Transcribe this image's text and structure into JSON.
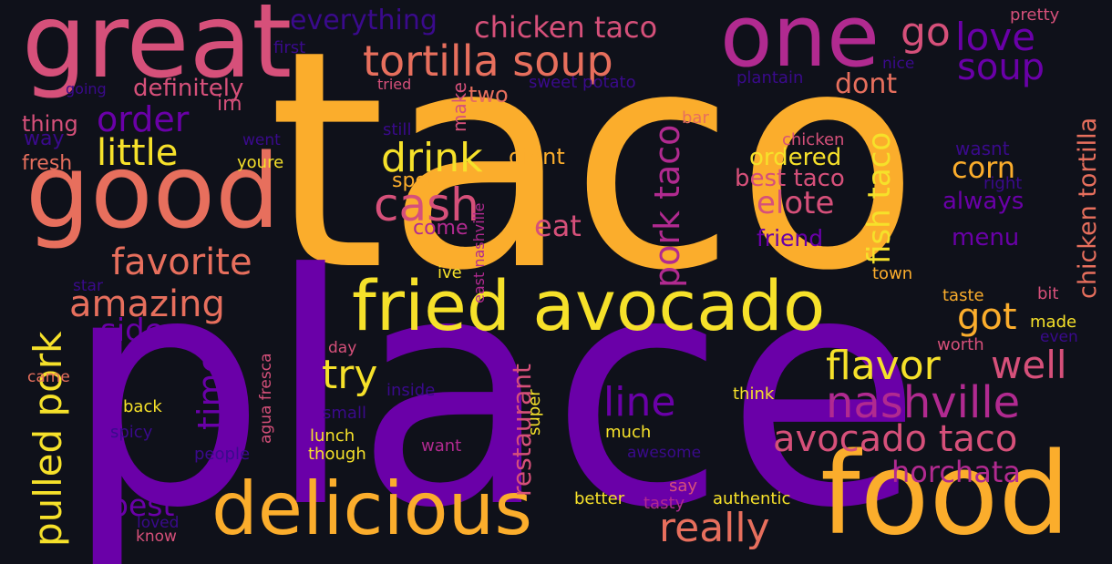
{
  "palette": {
    "background": "#0f111a",
    "orange": "#fbad2c",
    "yellow": "#f6e12a",
    "salmon": "#e76f5d",
    "pink": "#d6507a",
    "magenta": "#b12a90",
    "purple": "#6a00a8",
    "indigo": "#3a0a8c"
  },
  "words": [
    {
      "text": "taco",
      "color": "orange"
    },
    {
      "text": "place",
      "color": "purple"
    },
    {
      "text": "good",
      "color": "salmon"
    },
    {
      "text": "great",
      "color": "pink"
    },
    {
      "text": "one",
      "color": "magenta"
    },
    {
      "text": "food",
      "color": "orange"
    },
    {
      "text": "delicious",
      "color": "orange"
    },
    {
      "text": "fried avocado",
      "color": "yellow"
    },
    {
      "text": "tortilla soup",
      "color": "salmon"
    },
    {
      "text": "nashville",
      "color": "magenta"
    },
    {
      "text": "avocado taco",
      "color": "pink"
    },
    {
      "text": "chicken taco",
      "color": "pink"
    },
    {
      "text": "everything",
      "color": "indigo"
    },
    {
      "text": "go",
      "color": "pink"
    },
    {
      "text": "love",
      "color": "purple"
    },
    {
      "text": "soup",
      "color": "purple"
    },
    {
      "text": "order",
      "color": "purple"
    },
    {
      "text": "little",
      "color": "yellow"
    },
    {
      "text": "drink",
      "color": "yellow"
    },
    {
      "text": "cash",
      "color": "pink"
    },
    {
      "text": "favorite",
      "color": "salmon"
    },
    {
      "text": "amazing",
      "color": "salmon"
    },
    {
      "text": "pork taco",
      "color": "magenta"
    },
    {
      "text": "fish taco",
      "color": "yellow"
    },
    {
      "text": "chicken tortilla",
      "color": "salmon"
    },
    {
      "text": "corn",
      "color": "orange"
    },
    {
      "text": "always",
      "color": "purple"
    },
    {
      "text": "elote",
      "color": "pink"
    },
    {
      "text": "friend",
      "color": "purple"
    },
    {
      "text": "menu",
      "color": "purple"
    },
    {
      "text": "ordered",
      "color": "yellow"
    },
    {
      "text": "best taco",
      "color": "pink"
    },
    {
      "text": "dont",
      "color": "salmon"
    },
    {
      "text": "eat",
      "color": "pink"
    },
    {
      "text": "got",
      "color": "orange"
    },
    {
      "text": "well",
      "color": "pink"
    },
    {
      "text": "flavor",
      "color": "yellow"
    },
    {
      "text": "try",
      "color": "yellow"
    },
    {
      "text": "line",
      "color": "purple"
    },
    {
      "text": "time",
      "color": "purple"
    },
    {
      "text": "side",
      "color": "purple"
    },
    {
      "text": "pulled pork",
      "color": "yellow"
    },
    {
      "text": "best",
      "color": "purple"
    },
    {
      "text": "really",
      "color": "salmon"
    },
    {
      "text": "horchata",
      "color": "magenta"
    },
    {
      "text": "restaurant",
      "color": "pink"
    },
    {
      "text": "agua fresca",
      "color": "pink"
    },
    {
      "text": "two",
      "color": "salmon"
    },
    {
      "text": "make",
      "color": "pink"
    },
    {
      "text": "im",
      "color": "pink"
    },
    {
      "text": "thing",
      "color": "pink"
    },
    {
      "text": "definitely",
      "color": "pink"
    },
    {
      "text": "first",
      "color": "indigo"
    },
    {
      "text": "going",
      "color": "indigo"
    },
    {
      "text": "way",
      "color": "indigo"
    },
    {
      "text": "fresh",
      "color": "salmon"
    },
    {
      "text": "went",
      "color": "indigo"
    },
    {
      "text": "youre",
      "color": "yellow"
    },
    {
      "text": "tried",
      "color": "pink"
    },
    {
      "text": "sweet potato",
      "color": "indigo"
    },
    {
      "text": "plantain",
      "color": "indigo"
    },
    {
      "text": "nice",
      "color": "indigo"
    },
    {
      "text": "pretty",
      "color": "pink"
    },
    {
      "text": "still",
      "color": "indigo"
    },
    {
      "text": "bar",
      "color": "salmon"
    },
    {
      "text": "chicken",
      "color": "pink"
    },
    {
      "text": "didnt",
      "color": "orange"
    },
    {
      "text": "spot",
      "color": "orange"
    },
    {
      "text": "come",
      "color": "magenta"
    },
    {
      "text": "east nashville",
      "color": "magenta"
    },
    {
      "text": "ive",
      "color": "yellow"
    },
    {
      "text": "town",
      "color": "orange"
    },
    {
      "text": "wasnt",
      "color": "indigo"
    },
    {
      "text": "right",
      "color": "indigo"
    },
    {
      "text": "taste",
      "color": "orange"
    },
    {
      "text": "bit",
      "color": "pink"
    },
    {
      "text": "made",
      "color": "yellow"
    },
    {
      "text": "even",
      "color": "indigo"
    },
    {
      "text": "worth",
      "color": "pink"
    },
    {
      "text": "day",
      "color": "pink"
    },
    {
      "text": "star",
      "color": "indigo"
    },
    {
      "text": "came",
      "color": "salmon"
    },
    {
      "text": "inside",
      "color": "indigo"
    },
    {
      "text": "small",
      "color": "indigo"
    },
    {
      "text": "super",
      "color": "yellow"
    },
    {
      "text": "think",
      "color": "yellow"
    },
    {
      "text": "much",
      "color": "yellow"
    },
    {
      "text": "awesome",
      "color": "indigo"
    },
    {
      "text": "back",
      "color": "yellow"
    },
    {
      "text": "spicy",
      "color": "indigo"
    },
    {
      "text": "people",
      "color": "indigo"
    },
    {
      "text": "lunch",
      "color": "yellow"
    },
    {
      "text": "though",
      "color": "yellow"
    },
    {
      "text": "want",
      "color": "magenta"
    },
    {
      "text": "say",
      "color": "pink"
    },
    {
      "text": "better",
      "color": "yellow"
    },
    {
      "text": "tasty",
      "color": "magenta"
    },
    {
      "text": "authentic",
      "color": "yellow"
    },
    {
      "text": "loved",
      "color": "indigo"
    },
    {
      "text": "know",
      "color": "pink"
    }
  ]
}
